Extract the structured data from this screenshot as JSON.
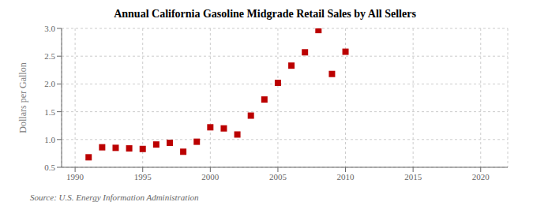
{
  "chart_data": {
    "type": "scatter",
    "title": "Annual California Gasoline Midgrade Retail Sales by All Sellers",
    "ylabel": "Dollars per Gallon",
    "annotations": [
      "Source: U.S. Energy Information Administration"
    ],
    "x": [
      1991,
      1992,
      1993,
      1994,
      1995,
      1996,
      1997,
      1998,
      1999,
      2000,
      2001,
      2002,
      2003,
      2004,
      2005,
      2006,
      2007,
      2008,
      2009,
      2010
    ],
    "values": [
      0.68,
      0.86,
      0.85,
      0.84,
      0.83,
      0.91,
      0.94,
      0.78,
      0.96,
      1.22,
      1.2,
      1.09,
      1.43,
      1.72,
      2.02,
      2.33,
      2.57,
      2.97,
      2.18,
      2.58
    ],
    "color": "#bb0000",
    "marker": "square",
    "xlim": [
      1989,
      2022
    ],
    "ylim": [
      0.5,
      3.0
    ],
    "xticks": [
      1990,
      1995,
      2000,
      2005,
      2010,
      2015,
      2020
    ],
    "yticks": [
      0.5,
      {
        "value": 1,
        "label": "1.0"
      },
      1.5,
      {
        "value": 2,
        "label": "2.0"
      },
      2.5,
      {
        "value": 3,
        "label": "3.0"
      }
    ],
    "grid": true
  }
}
